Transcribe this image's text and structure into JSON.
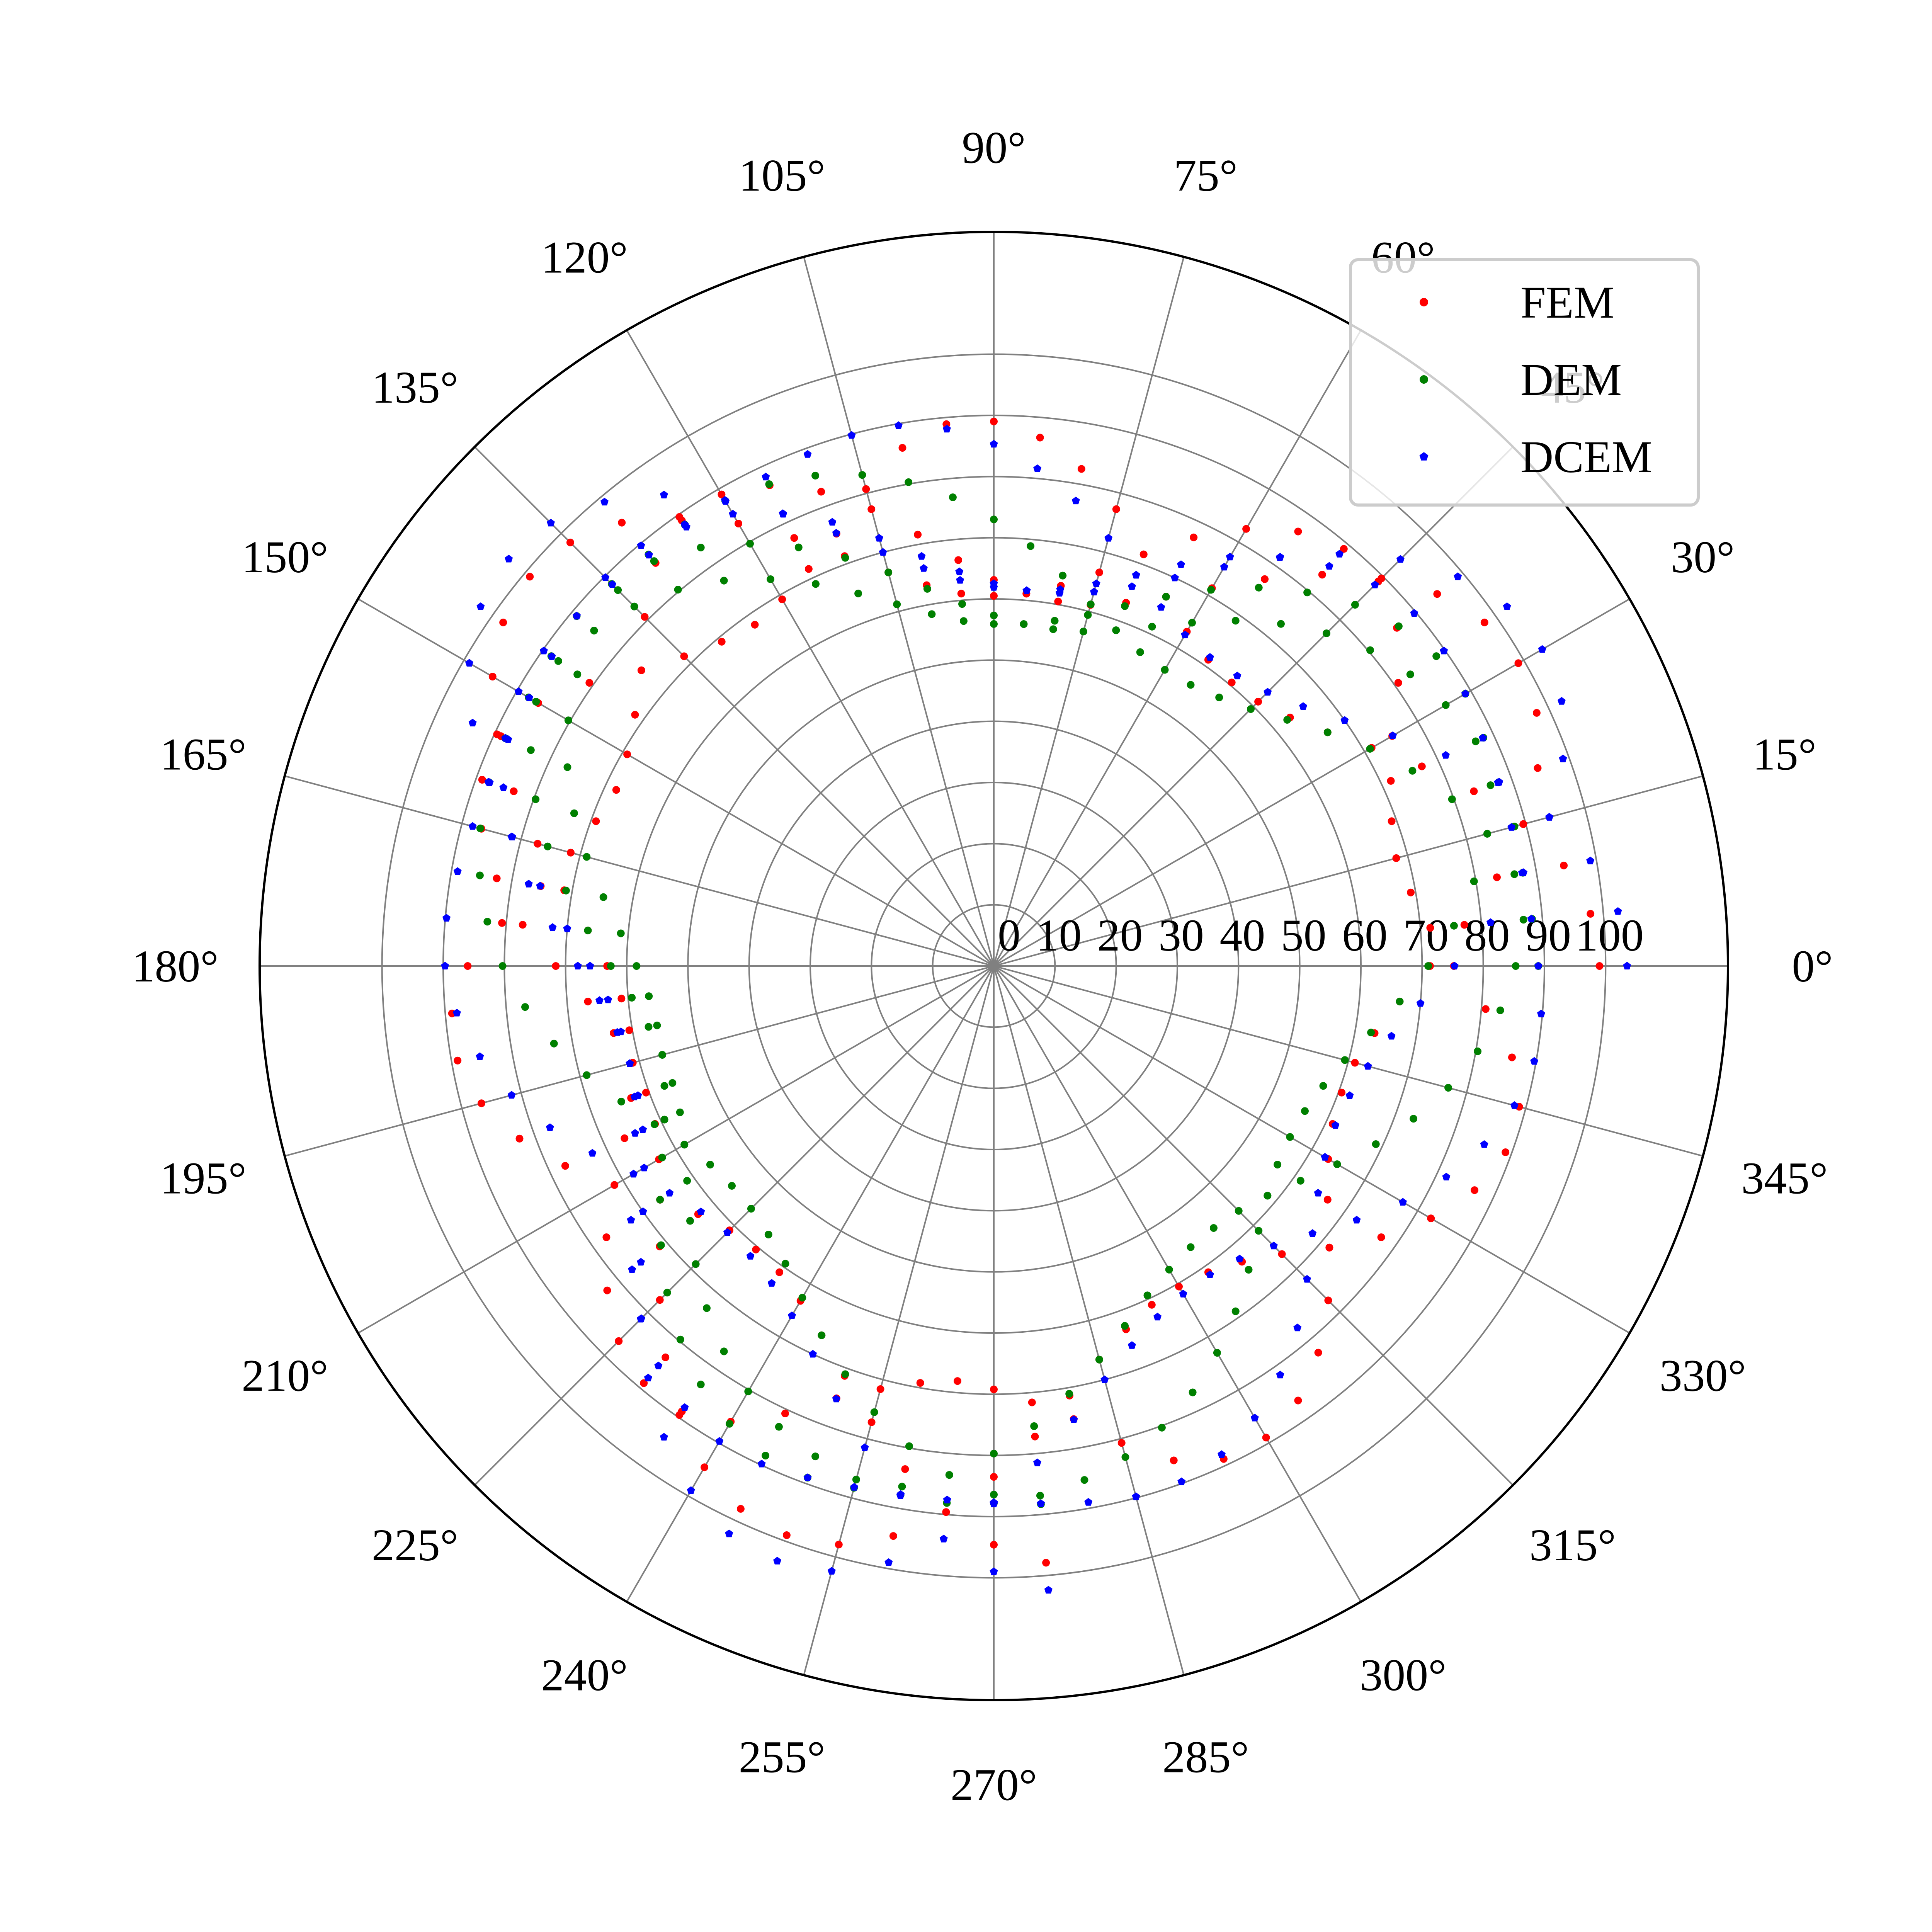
{
  "chart_data": {
    "type": "scatter",
    "projection": "polar",
    "title": "",
    "angle_unit": "degrees",
    "angle_ticks": [
      0,
      15,
      30,
      45,
      60,
      75,
      90,
      105,
      120,
      135,
      150,
      165,
      180,
      195,
      210,
      225,
      240,
      255,
      270,
      285,
      300,
      315,
      330,
      345
    ],
    "angle_tick_labels": [
      "0°",
      "15°",
      "30°",
      "45°",
      "60°",
      "75°",
      "90°",
      "105°",
      "120°",
      "135°",
      "150°",
      "165°",
      "180°",
      "195°",
      "210°",
      "225°",
      "240°",
      "255°",
      "270°",
      "285°",
      "300°",
      "315°",
      "330°",
      "345°"
    ],
    "r_ticks": [
      0,
      10,
      20,
      30,
      40,
      50,
      60,
      70,
      80,
      90,
      100
    ],
    "r_tick_labels": [
      "0",
      "10",
      "20",
      "30",
      "40",
      "50",
      "60",
      "70",
      "80",
      "90",
      "100"
    ],
    "r_lim": [
      0,
      120
    ],
    "grid": true,
    "legend_position": "top-right",
    "angle_step": 5,
    "series": [
      {
        "name": "FEM",
        "color": "#ff0000",
        "marker": "circle",
        "r": [
          99.0,
          97.9,
          94.6,
          89.6,
          83.5,
          77.2,
          71.3,
          66.6,
          63.2,
          61.1,
          60.5,
          61.1,
          63.1,
          66.6,
          71.6,
          77.3,
          82.5,
          86.7,
          89.0,
          88.9,
          86.0,
          80.7,
          75.2,
          71.6,
          69.2,
          68.1,
          69.2,
          71.6,
          75.2,
          80.7,
          86.0,
          88.9,
          89.0,
          86.7,
          82.5,
          77.3,
          71.6,
          66.6,
          63.1,
          61.1,
          60.5,
          61.1,
          63.2,
          66.6,
          71.3,
          77.2,
          83.5,
          89.6,
          94.6,
          97.9,
          99.0,
          97.9,
          94.6,
          89.6,
          83.5,
          77.2,
          71.3,
          66.6,
          63.2,
          61.1,
          60.5,
          61.1,
          63.1,
          66.6,
          71.6,
          77.3,
          82.5,
          86.7,
          89.0,
          88.9,
          86.0,
          80.7,
          75.2,
          71.6,
          69.2,
          68.1,
          69.2,
          71.6,
          75.2,
          80.7,
          86.0,
          88.9,
          89.0,
          86.7,
          82.5,
          77.3,
          71.6,
          66.6,
          63.1,
          61.1,
          60.5,
          61.1,
          63.2,
          66.6,
          71.3,
          77.2,
          83.5,
          89.6,
          94.6,
          97.9,
          99.0,
          97.9,
          94.6,
          89.6,
          83.5,
          77.2,
          71.3,
          66.6,
          63.2,
          61.1,
          60.5,
          61.1,
          63.1,
          66.6,
          71.6,
          77.3,
          82.5,
          86.7,
          89.0,
          88.9,
          86.0,
          80.7,
          75.2,
          71.6,
          69.2,
          68.1,
          69.2,
          71.6,
          75.2,
          80.7,
          86.0,
          88.9,
          89.0,
          86.7,
          82.5,
          77.3,
          71.6,
          66.6,
          63.1,
          61.1,
          60.5,
          61.1,
          63.2,
          66.6,
          71.3,
          77.2,
          83.5,
          89.6,
          94.6,
          97.9,
          99.0,
          97.9,
          94.6,
          89.6,
          83.5,
          77.2,
          71.3,
          66.6,
          63.2,
          61.1,
          60.5,
          61.1,
          63.1,
          66.6,
          71.6,
          77.3,
          82.5,
          86.7,
          89.0,
          88.9,
          86.0,
          80.7,
          75.2,
          71.6,
          69.2,
          68.1,
          69.2,
          71.6,
          75.2,
          80.7,
          86.0,
          88.9,
          89.0,
          86.7,
          82.5,
          77.3,
          71.6,
          66.6,
          63.1,
          61.1,
          60.5,
          61.1,
          63.2,
          66.6,
          71.3,
          77.2,
          83.5,
          89.6,
          94.6,
          97.9
        ]
      },
      {
        "name": "DEM",
        "color": "#008000",
        "marker": "circle",
        "r": [
          89.0,
          88.3,
          86.4,
          83.5,
          79.7,
          75.5,
          71.0,
          66.6,
          62.6,
          59.4,
          57.3,
          56.1,
          55.9,
          56.6,
          58.4,
          61.2,
          64.8,
          68.9,
          73.0,
          76.9,
          80.3,
          83.1,
          85.3,
          86.9,
          87.8,
          88.1,
          87.8,
          86.9,
          85.3,
          83.1,
          80.3,
          76.9,
          73.0,
          68.9,
          64.8,
          61.2,
          58.4,
          56.6,
          55.9,
          56.1,
          57.3,
          59.4,
          62.6,
          66.6,
          71.0,
          75.5,
          79.7,
          83.5,
          86.4,
          88.3,
          89.0,
          88.3,
          86.4,
          83.5,
          79.7,
          75.5,
          71.0,
          66.6,
          62.6,
          59.4,
          57.3,
          56.1,
          55.9,
          56.6,
          58.4,
          61.2,
          64.8,
          68.9,
          73.0,
          76.9,
          80.3,
          83.1,
          85.3,
          86.9,
          87.8,
          88.1,
          87.8,
          86.9,
          85.3,
          83.1,
          80.3,
          76.9,
          73.0,
          68.9,
          64.8,
          61.2,
          58.4,
          56.6,
          55.9,
          56.1,
          57.3,
          59.4,
          62.6,
          66.6,
          71.0,
          75.5,
          79.7,
          83.5,
          86.4,
          88.3,
          89.0,
          88.3,
          86.4,
          83.5,
          79.7,
          75.5,
          71.0,
          66.6,
          62.6,
          59.4,
          57.3,
          56.1,
          55.9,
          56.6,
          58.4,
          61.2,
          64.8,
          68.9,
          73.0,
          76.9,
          80.3,
          83.1,
          85.3,
          86.9,
          87.8,
          88.1,
          87.8,
          86.9,
          85.3,
          83.1,
          80.3,
          76.9,
          73.0,
          68.9,
          64.8,
          61.2,
          58.4,
          56.6,
          55.9,
          56.1,
          57.3,
          59.4,
          62.6,
          66.6,
          71.0,
          75.5,
          79.7,
          83.5,
          86.4,
          88.3,
          89.0,
          88.3,
          86.4,
          83.5,
          79.7,
          75.5,
          71.0,
          66.6,
          62.6,
          59.4,
          57.3,
          56.1,
          55.9,
          56.6,
          58.4,
          61.2,
          64.8,
          68.9,
          73.0,
          76.9,
          80.3,
          83.1,
          85.3,
          86.9,
          87.8,
          88.1,
          87.8,
          86.9,
          85.3,
          83.1,
          80.3,
          76.9,
          73.0,
          68.9,
          64.8,
          61.2,
          58.4,
          56.6,
          55.9,
          56.1,
          57.3,
          59.4,
          62.6,
          66.6,
          71.0,
          75.5,
          79.7,
          83.5,
          86.4,
          88.3
        ]
      },
      {
        "name": "DCEM",
        "color": "#0000ff",
        "marker": "pentagon",
        "r": [
          103.5,
          102.4,
          99.0,
          94.0,
          87.9,
          81.5,
          75.3,
          70.0,
          66.0,
          63.3,
          61.9,
          61.6,
          62.5,
          64.7,
          68.0,
          72.4,
          77.2,
          81.6,
          85.3,
          88.1,
          89.7,
          89.8,
          89.0,
          88.2,
          87.7,
          87.6,
          87.7,
          88.2,
          89.0,
          89.8,
          89.7,
          88.1,
          85.3,
          81.6,
          77.2,
          72.4,
          68.0,
          64.7,
          62.5,
          61.6,
          61.9,
          63.3,
          66.0,
          70.0,
          75.3,
          81.5,
          87.9,
          94.0,
          99.0,
          102.4,
          103.5,
          102.4,
          99.0,
          94.0,
          87.9,
          81.5,
          75.3,
          70.0,
          66.0,
          63.3,
          61.9,
          61.6,
          62.5,
          64.7,
          68.0,
          72.4,
          77.2,
          81.6,
          85.3,
          88.1,
          89.7,
          89.8,
          89.0,
          88.2,
          87.7,
          87.6,
          87.7,
          88.2,
          89.0,
          89.8,
          89.7,
          88.1,
          85.3,
          81.6,
          77.2,
          72.4,
          68.0,
          64.7,
          62.5,
          61.6,
          61.9,
          63.3,
          66.0,
          70.0,
          75.3,
          81.5,
          87.9,
          94.0,
          99.0,
          102.4,
          103.5,
          102.4,
          99.0,
          94.0,
          87.9,
          81.5,
          75.3,
          70.0,
          66.0,
          63.3,
          61.9,
          61.6,
          62.5,
          64.7,
          68.0,
          72.4,
          77.2,
          81.6,
          85.3,
          88.1,
          89.7,
          89.8,
          89.0,
          88.2,
          87.7,
          87.6,
          87.7,
          88.2,
          89.0,
          89.8,
          89.7,
          88.1,
          85.3,
          81.6,
          77.2,
          72.4,
          68.0,
          64.7,
          62.5,
          61.6,
          61.9,
          63.3,
          66.0,
          70.0,
          75.3,
          81.5,
          87.9,
          94.0,
          99.0,
          102.4,
          103.5,
          102.4,
          99.0,
          94.0,
          87.9,
          81.5,
          75.3,
          70.0,
          66.0,
          63.3,
          61.9,
          61.6,
          62.5,
          64.7,
          68.0,
          72.4,
          77.2,
          81.6,
          85.3,
          88.1,
          89.7,
          89.8,
          89.0,
          88.2,
          87.7,
          87.6,
          87.7,
          88.2,
          89.0,
          89.8,
          89.7,
          88.1,
          85.3,
          81.6,
          77.2,
          72.4,
          68.0,
          64.7,
          62.5,
          61.6,
          61.9,
          63.3,
          66.0,
          70.0,
          75.3,
          81.5,
          87.9,
          94.0,
          99.0,
          102.4
        ]
      }
    ]
  }
}
